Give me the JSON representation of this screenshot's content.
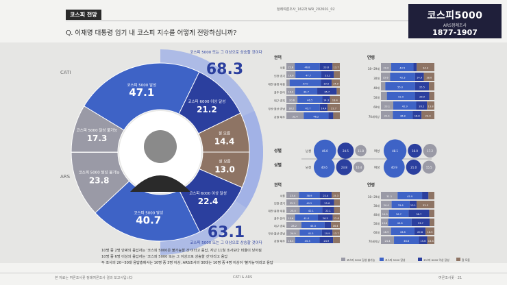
{
  "header": {
    "tag": "코스피 전망",
    "question": "Q. 이재명 대통령 임기 내 코스피 지수를 어떻게 전망하십니까?",
    "issue": "정례여론조사_162차  WR_202601_02",
    "brand_line1": "코스피5000",
    "brand_line2": "ARS정례조사",
    "brand_line3": "1877-1907"
  },
  "chart_data": [
    {
      "type": "pie",
      "name": "CATI",
      "label": "CATI",
      "slices": [
        {
          "label": "코스피 5000 달성",
          "value": 47.1
        },
        {
          "label": "코스피 6000 이상 달성",
          "value": 21.2
        },
        {
          "label": "잘 모름",
          "value": 14.4
        },
        {
          "label": "코스피 5000 달성 불가능",
          "value": 17.3
        }
      ],
      "callout_label": "코스피 5000 또는 그 이상으로 상승할 것이다",
      "callout_value": 68.3
    },
    {
      "type": "pie",
      "name": "ARS",
      "label": "ARS",
      "slices": [
        {
          "label": "코스피 5000 달성",
          "value": 40.7
        },
        {
          "label": "코스피 6000 이상 달성",
          "value": 22.4
        },
        {
          "label": "잘 모름",
          "value": 13.0
        },
        {
          "label": "코스피 5000 달성 불가능",
          "value": 23.8
        }
      ],
      "callout_label": "코스피 5000 또는 그 이상으로 상승할 것이다",
      "callout_value": 63.1
    }
  ],
  "colors": {
    "k5000": "#3e63c6",
    "k6000": "#2b3f9e",
    "dontknow": "#8e7464",
    "impossible": "#9a9aa6",
    "ring": "#9fb0e6",
    "callout": "#2b3f9e"
  },
  "tables": {
    "region_title": "권역",
    "age_title": "연령",
    "gender_title": "성별",
    "cati_region": [
      {
        "label": "서울",
        "v": [
          15.6,
          46.8,
          23.8,
          13.7
        ]
      },
      {
        "label": "인천·경기",
        "v": [
          16.6,
          47.7,
          23.1,
          10.9
        ]
      },
      {
        "label": "대전·충청·세종",
        "v": [
          5.9,
          57.0,
          19.5,
          14.9
        ]
      },
      {
        "label": "광주·전라",
        "v": [
          16.0,
          40.7,
          35.7,
          5.8
        ]
      },
      {
        "label": "대구·경북",
        "v": [
          20.6,
          46.5,
          14.3,
          18.4
        ]
      },
      {
        "label": "부산·울산·경남",
        "v": [
          18.2,
          43.7,
          14.4,
          22.7
        ]
      },
      {
        "label": "강원·제주",
        "v": [
          32.4,
          46.2,
          9.0,
          12.3
        ]
      }
    ],
    "cati_age": [
      {
        "label": "18~29세",
        "v": [
          20.0,
          43.5,
          6.3,
          34.4
        ]
      },
      {
        "label": "30대",
        "v": [
          15.6,
          42.3,
          14.9,
          18.0
        ]
      },
      {
        "label": "40대",
        "v": [
          8.0,
          55.0,
          25.5,
          10.0
        ]
      },
      {
        "label": "50대",
        "v": [
          11.1,
          52.5,
          26.9,
          9.5
        ]
      },
      {
        "label": "60대",
        "v": [
          23.1,
          42.9,
          20.2,
          13.8
        ]
      },
      {
        "label": "70세이상",
        "v": [
          22.4,
          36.8,
          16.8,
          24.0
        ]
      }
    ],
    "ars_region": [
      {
        "label": "서울",
        "v": [
          23.4,
          38.9,
          22.4,
          15.3
        ]
      },
      {
        "label": "인천·경기",
        "v": [
          22.2,
          40.2,
          25.8,
          10.7
        ]
      },
      {
        "label": "대전·충청·세종",
        "v": [
          25.0,
          42.1,
          22.1,
          10.8
        ]
      },
      {
        "label": "광주·전라",
        "v": [
          15.6,
          41.0,
          26.5,
          12.8
        ]
      },
      {
        "label": "대구·경북",
        "v": [
          28.2,
          43.3,
          12.1,
          16.4
        ]
      },
      {
        "label": "부산·울산·경남",
        "v": [
          24.9,
          41.5,
          19.9,
          13.7
        ]
      },
      {
        "label": "강원·제주",
        "v": [
          16.3,
          45.3,
          24.9,
          12.5
        ]
      }
    ],
    "ars_age": [
      {
        "label": "18~29세",
        "v": [
          31.1,
          45.9,
          11.9,
          11.1
        ]
      },
      {
        "label": "30대",
        "v": [
          20.0,
          33.6,
          13.1,
          33.3
        ]
      },
      {
        "label": "40대",
        "v": [
          14.9,
          36.7,
          38.7,
          9.7
        ]
      },
      {
        "label": "50대",
        "v": [
          13.6,
          43.8,
          33.7,
          8.9
        ]
      },
      {
        "label": "60대",
        "v": [
          18.9,
          43.8,
          20.8,
          16.5
        ]
      },
      {
        "label": "70세이상",
        "v": [
          24.4,
          46.6,
          15.6,
          13.4
        ]
      }
    ],
    "cati_gender": {
      "male": [
        46.0,
        24.5,
        11.8
      ],
      "female": [
        48.1,
        18.0,
        17.2
      ]
    },
    "ars_gender": {
      "male": [
        40.6,
        23.8,
        10.4
      ],
      "female": [
        40.9,
        21.0,
        15.5
      ]
    },
    "gender_male": "남성",
    "gender_female": "여성",
    "legend": [
      "코스피 5000 달성 불가능",
      "코스피 5000 달성",
      "코스피 6000 이상 달성",
      "잘 모름"
    ]
  },
  "notes": {
    "line1": "10명 중 2명 안팎의 응답자는 '코스피 5000은 불가능할 것'이라고 응답, 지난 11월 조사보다 비율이 낮아짐",
    "line2": "10명 중 6명 이상의 응답자는 '코스피 5000 또는 그 이상으로 상승할 것'이라고 응답",
    "line3": "두 조사의 20~50대 응답층에서는 10명 중 3명 이상, ARS조사의 30대는 10명 중 4명 이상이 '불가능'이라고 응답"
  },
  "footer": {
    "left": "본 자료는 여론조사꽃 정례여론조사 결과 보고서입니다",
    "center": "CATI & ARS",
    "right": "여론조사꽃 · 21"
  }
}
